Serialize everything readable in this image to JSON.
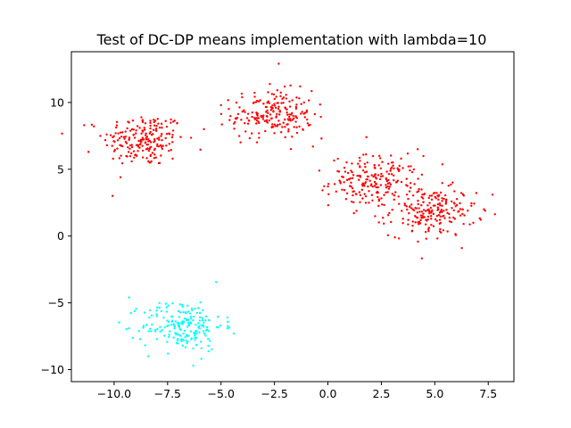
{
  "chart_data": {
    "type": "scatter",
    "title": "Test of DC-DP means implementation with lambda=10",
    "xlabel": "",
    "ylabel": "",
    "xlim": [
      -12.0,
      8.7
    ],
    "ylim": [
      -10.9,
      13.8
    ],
    "xticks": [
      -10.0,
      -7.5,
      -5.0,
      -2.5,
      0.0,
      2.5,
      5.0,
      7.5
    ],
    "xtick_labels": [
      "−10.0",
      "−7.5",
      "−5.0",
      "−2.5",
      "0.0",
      "2.5",
      "5.0",
      "7.5"
    ],
    "yticks": [
      -10,
      -5,
      0,
      5,
      10
    ],
    "ytick_labels": [
      "−10",
      "−5",
      "0",
      "5",
      "10"
    ],
    "grid": false,
    "legend": "none",
    "series": [
      {
        "color": "#ff0000",
        "marker_size": 2.2,
        "clusters": [
          {
            "center": [
              -8.6,
              7.2
            ],
            "spread": [
              0.95,
              1.0
            ],
            "count": 200
          },
          {
            "center": [
              -2.6,
              9.1
            ],
            "spread": [
              0.95,
              0.9
            ],
            "count": 200
          },
          {
            "center": [
              2.2,
              4.1
            ],
            "spread": [
              1.05,
              0.95
            ],
            "count": 200
          },
          {
            "center": [
              4.9,
              1.8
            ],
            "spread": [
              1.0,
              0.9
            ],
            "count": 200
          }
        ],
        "points": [
          [
            -11.4,
            8.3
          ],
          [
            -11.2,
            6.3
          ],
          [
            -9.7,
            4.4
          ],
          [
            -5.8,
            8.0
          ],
          [
            -5.0,
            9.8
          ],
          [
            -2.3,
            12.9
          ],
          [
            -0.3,
            7.3
          ],
          [
            -0.7,
            6.7
          ],
          [
            1.8,
            7.4
          ],
          [
            -0.4,
            4.9
          ],
          [
            7.7,
            3.1
          ],
          [
            7.3,
            2.0
          ],
          [
            4.2,
            6.5
          ],
          [
            4.6,
            -0.2
          ]
        ]
      },
      {
        "color": "#00ffff",
        "marker_size": 2.2,
        "clusters": [
          {
            "center": [
              -6.8,
              -6.7
            ],
            "spread": [
              0.95,
              0.95
            ],
            "count": 200
          }
        ],
        "points": [
          [
            -9.3,
            -4.6
          ],
          [
            -8.4,
            -9.0
          ],
          [
            -6.3,
            -9.7
          ],
          [
            -4.4,
            -7.3
          ]
        ]
      }
    ]
  }
}
